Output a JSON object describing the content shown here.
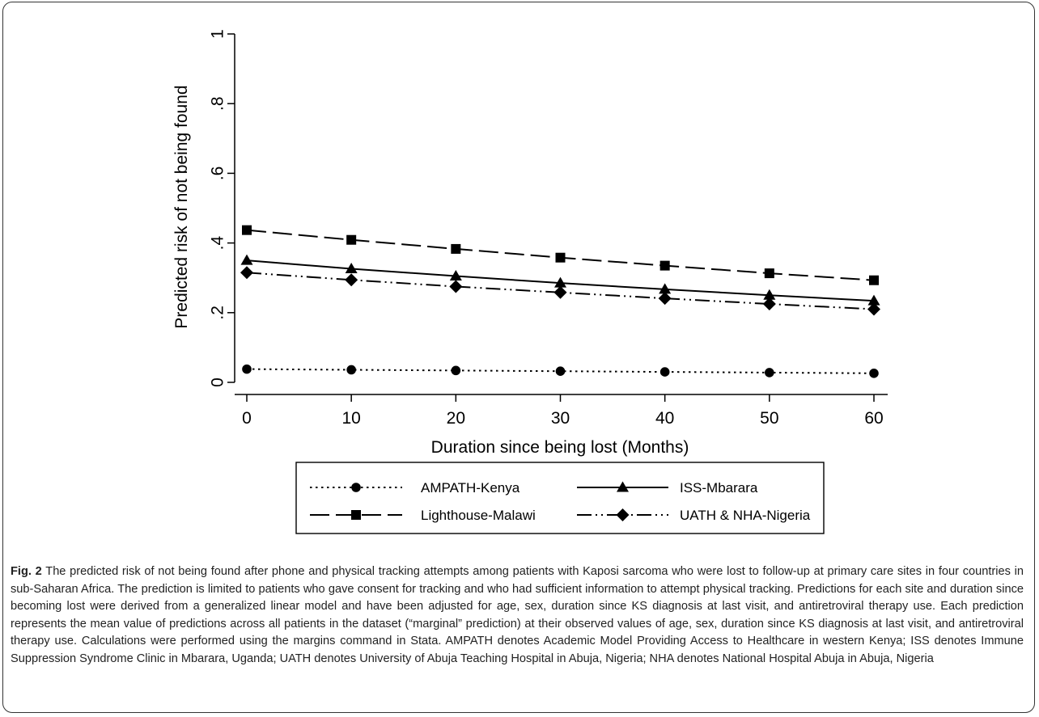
{
  "chart_data": {
    "type": "line",
    "title": "",
    "xlabel": "Duration since being lost (Months)",
    "ylabel": "Predicted risk of not being found",
    "x": [
      0,
      10,
      20,
      30,
      40,
      50,
      60
    ],
    "xlim": [
      0,
      60
    ],
    "ylim": [
      0,
      1
    ],
    "x_ticks": [
      "0",
      "10",
      "20",
      "30",
      "40",
      "50",
      "60"
    ],
    "y_ticks": [
      {
        "value": 0,
        "label": "0"
      },
      {
        "value": 0.2,
        "label": ".2"
      },
      {
        "value": 0.4,
        "label": ".4"
      },
      {
        "value": 0.6,
        "label": ".6"
      },
      {
        "value": 0.8,
        "label": ".8"
      },
      {
        "value": 1,
        "label": "1"
      }
    ],
    "grid": false,
    "legend_position": "bottom",
    "series": [
      {
        "name": "AMPATH-Kenya",
        "marker": "circle",
        "dash": "dotted",
        "values": [
          0.038,
          0.036,
          0.034,
          0.032,
          0.03,
          0.028,
          0.026
        ]
      },
      {
        "name": "ISS-Mbarara",
        "marker": "triangle",
        "dash": "solid",
        "values": [
          0.35,
          0.326,
          0.305,
          0.285,
          0.267,
          0.25,
          0.234
        ]
      },
      {
        "name": "Lighthouse-Malawi",
        "marker": "square",
        "dash": "dashed",
        "values": [
          0.437,
          0.409,
          0.383,
          0.358,
          0.335,
          0.313,
          0.293
        ]
      },
      {
        "name": "UATH & NHA-Nigeria",
        "marker": "diamond",
        "dash": "dashdot",
        "values": [
          0.315,
          0.294,
          0.275,
          0.258,
          0.241,
          0.225,
          0.21
        ]
      }
    ]
  },
  "caption": {
    "label": "Fig. 2",
    "text": "The predicted risk of not being found after phone and physical tracking attempts among patients with Kaposi sarcoma who were lost to follow-up at primary care sites in four countries in sub-Saharan Africa. The prediction is limited to patients who gave consent for tracking and who had sufficient information to attempt physical tracking. Predictions for each site and duration since becoming lost were derived from a generalized linear model and have been adjusted for age, sex, duration since KS diagnosis at last visit, and antiretroviral therapy use. Each prediction represents the mean value of predictions across all patients in the dataset (“marginal” prediction) at their observed values of age, sex, duration since KS diagnosis at last visit, and antiretroviral therapy use. Calculations were performed using the margins command in Stata. AMPATH denotes Academic Model Providing Access to Healthcare in western Kenya; ISS denotes Immune Suppression Syndrome Clinic in Mbarara, Uganda; UATH denotes University of Abuja Teaching Hospital in Abuja, Nigeria; NHA denotes National Hospital Abuja in Abuja, Nigeria"
  }
}
